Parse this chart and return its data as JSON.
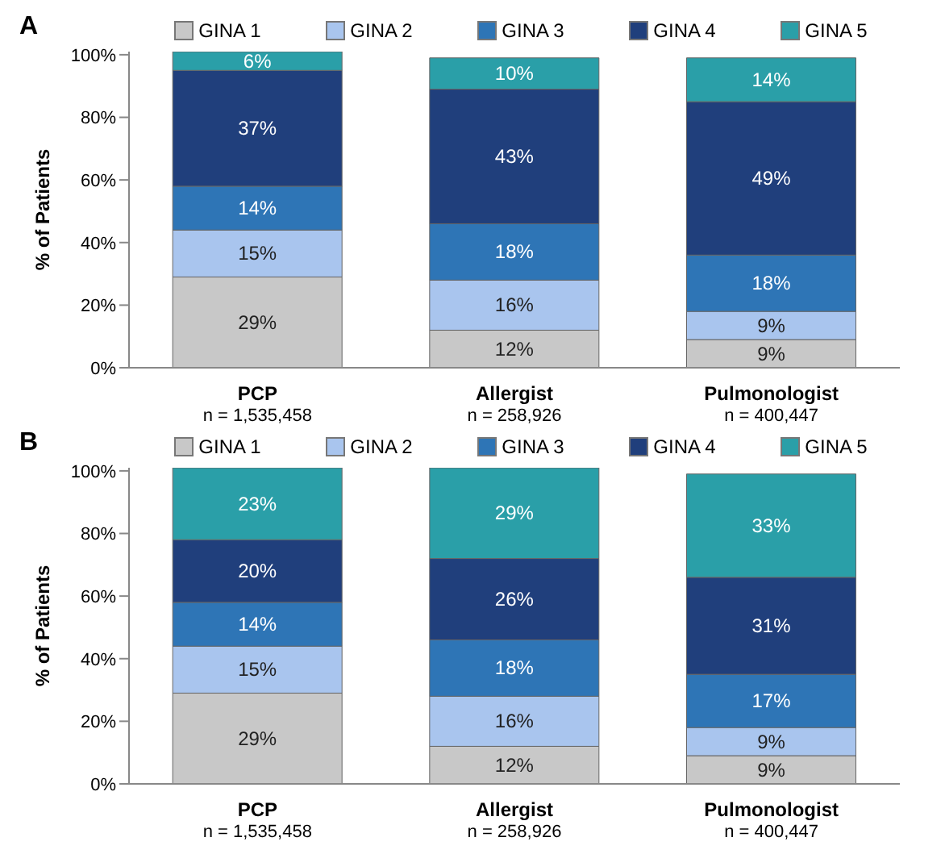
{
  "chart_data": [
    {
      "type": "bar",
      "title": "A",
      "ylabel": "% of Patients",
      "stacked": true,
      "legend": "top",
      "grid": false,
      "categories": [
        "PCP\nn = 1,535,458",
        "Allergist\nn = 258,926",
        "Pulmonologist\nn = 400,447"
      ],
      "ylim": [
        0,
        101
      ],
      "yticks": [
        {
          "value": 0,
          "label": "0%"
        },
        {
          "value": 20,
          "label": "20%"
        },
        {
          "value": 40,
          "label": "40%"
        },
        {
          "value": 60,
          "label": "60%"
        },
        {
          "value": 80,
          "label": "80%"
        },
        {
          "value": 100,
          "label": "100%"
        }
      ],
      "series": [
        {
          "name": "GINA 1",
          "color": "#c8c8c8",
          "values": [
            29,
            12,
            9
          ],
          "value_labels": [
            "29%",
            "12%",
            "9%"
          ]
        },
        {
          "name": "GINA 2",
          "color": "#a9c5ee",
          "values": [
            15,
            16,
            9
          ],
          "value_labels": [
            "15%",
            "16%",
            "9%"
          ]
        },
        {
          "name": "GINA 3",
          "color": "#2e75b6",
          "values": [
            14,
            18,
            18
          ],
          "value_labels": [
            "14%",
            "18%",
            "18%"
          ]
        },
        {
          "name": "GINA 4",
          "color": "#203f7c",
          "values": [
            37,
            43,
            49
          ],
          "value_labels": [
            "37%",
            "43%",
            "49%"
          ]
        },
        {
          "name": "GINA 5",
          "color": "#2a9fa8",
          "values": [
            6,
            10,
            14
          ],
          "value_labels": [
            "6%",
            "10%",
            "14%"
          ]
        }
      ]
    },
    {
      "type": "bar",
      "title": "B",
      "ylabel": "% of Patients",
      "stacked": true,
      "legend": "top",
      "grid": false,
      "categories": [
        "PCP\nn = 1,535,458",
        "Allergist\nn = 258,926",
        "Pulmonologist\nn = 400,447"
      ],
      "ylim": [
        0,
        101
      ],
      "yticks": [
        {
          "value": 0,
          "label": "0%"
        },
        {
          "value": 20,
          "label": "20%"
        },
        {
          "value": 40,
          "label": "40%"
        },
        {
          "value": 60,
          "label": "60%"
        },
        {
          "value": 80,
          "label": "80%"
        },
        {
          "value": 100,
          "label": "100%"
        }
      ],
      "series": [
        {
          "name": "GINA 1",
          "color": "#c8c8c8",
          "values": [
            29,
            12,
            9
          ],
          "value_labels": [
            "29%",
            "12%",
            "9%"
          ]
        },
        {
          "name": "GINA 2",
          "color": "#a9c5ee",
          "values": [
            15,
            16,
            9
          ],
          "value_labels": [
            "15%",
            "16%",
            "9%"
          ]
        },
        {
          "name": "GINA 3",
          "color": "#2e75b6",
          "values": [
            14,
            18,
            17
          ],
          "value_labels": [
            "14%",
            "18%",
            "17%"
          ]
        },
        {
          "name": "GINA 4",
          "color": "#203f7c",
          "values": [
            20,
            26,
            31
          ],
          "value_labels": [
            "20%",
            "26%",
            "31%"
          ]
        },
        {
          "name": "GINA 5",
          "color": "#2a9fa8",
          "values": [
            23,
            29,
            33
          ],
          "value_labels": [
            "23%",
            "29%",
            "33%"
          ]
        }
      ]
    }
  ]
}
